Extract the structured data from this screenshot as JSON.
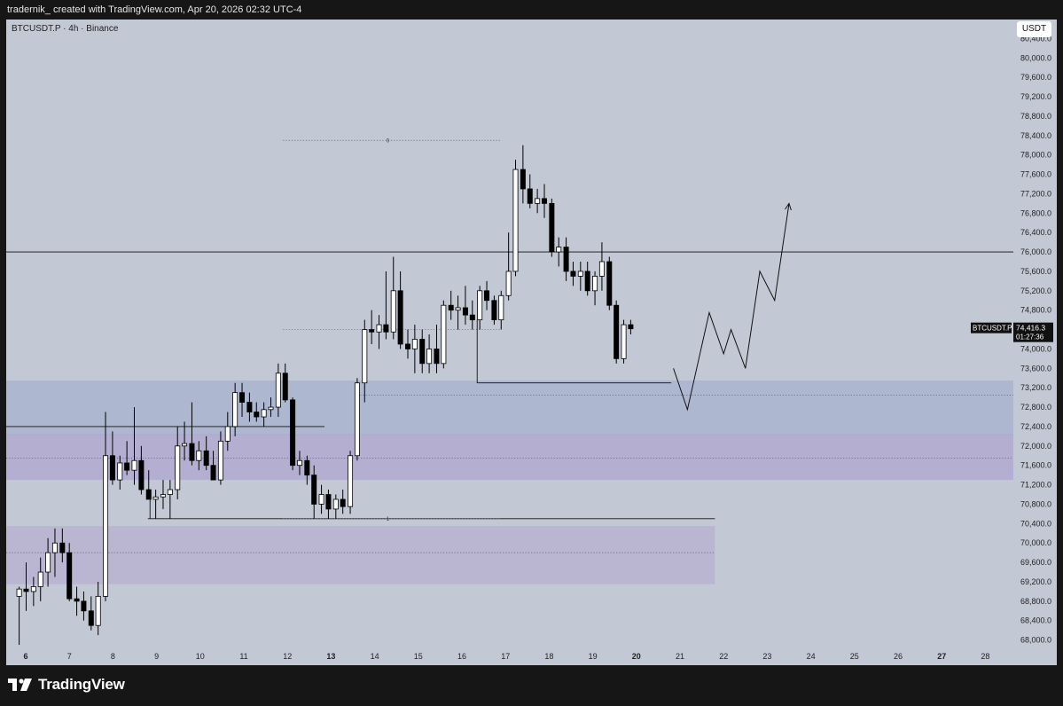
{
  "header": {
    "caption": "tradernik_ created with TradingView.com, Apr 20, 2026 02:32 UTC-4"
  },
  "chart_header": {
    "symbol_title": "BTCUSDT.P · 4h · Binance",
    "currency": "USDT"
  },
  "price_label": {
    "symbol": "BTCUSDT.P",
    "price": "74,416.3",
    "countdown": "01:27:36"
  },
  "fib_labels": {
    "top": "0",
    "bottom": "1"
  },
  "brand": {
    "name": "TradingView"
  },
  "colors": {
    "background": "#c3c8d5",
    "bull_candle": "#ffffff",
    "bear_candle": "#000000",
    "supply_zone": "#aab4cf",
    "demand_zone_upper": "#b2aad0",
    "demand_zone_lower": "#b9b3d0"
  },
  "chart_data": {
    "type": "candlestick",
    "x_ticks": [
      {
        "label": "6",
        "bold": true,
        "day": 6
      },
      {
        "label": "7",
        "bold": false,
        "day": 7
      },
      {
        "label": "8",
        "bold": false,
        "day": 8
      },
      {
        "label": "9",
        "bold": false,
        "day": 9
      },
      {
        "label": "10",
        "bold": false,
        "day": 10
      },
      {
        "label": "11",
        "bold": false,
        "day": 11
      },
      {
        "label": "12",
        "bold": false,
        "day": 12
      },
      {
        "label": "13",
        "bold": true,
        "day": 13
      },
      {
        "label": "14",
        "bold": false,
        "day": 14
      },
      {
        "label": "15",
        "bold": false,
        "day": 15
      },
      {
        "label": "16",
        "bold": false,
        "day": 16
      },
      {
        "label": "17",
        "bold": false,
        "day": 17
      },
      {
        "label": "18",
        "bold": false,
        "day": 18
      },
      {
        "label": "19",
        "bold": false,
        "day": 19
      },
      {
        "label": "20",
        "bold": true,
        "day": 20
      },
      {
        "label": "21",
        "bold": false,
        "day": 21
      },
      {
        "label": "22",
        "bold": false,
        "day": 22
      },
      {
        "label": "23",
        "bold": false,
        "day": 23
      },
      {
        "label": "24",
        "bold": false,
        "day": 24
      },
      {
        "label": "25",
        "bold": false,
        "day": 25
      },
      {
        "label": "26",
        "bold": false,
        "day": 26
      },
      {
        "label": "27",
        "bold": true,
        "day": 27
      },
      {
        "label": "28",
        "bold": false,
        "day": 28
      }
    ],
    "y_ticks": [
      "80,400.0",
      "80,000.0",
      "79,600.0",
      "79,200.0",
      "78,800.0",
      "78,400.0",
      "78,000.0",
      "77,600.0",
      "77,200.0",
      "76,800.0",
      "76,400.0",
      "76,000.0",
      "75,600.0",
      "75,200.0",
      "74,800.0",
      "74,400.0",
      "74,000.0",
      "73,600.0",
      "73,200.0",
      "72,800.0",
      "72,400.0",
      "72,000.0",
      "71,600.0",
      "71,200.0",
      "70,800.0",
      "70,400.0",
      "70,000.0",
      "69,600.0",
      "69,200.0",
      "68,800.0",
      "68,400.0",
      "68,000.0"
    ],
    "ylim": [
      67700,
      80700
    ],
    "candles": [
      {
        "t": 5.85,
        "o": 68900,
        "h": 69100,
        "l": 67900,
        "c": 69050
      },
      {
        "t": 6.01,
        "o": 69050,
        "h": 69600,
        "l": 68600,
        "c": 69000
      },
      {
        "t": 6.18,
        "o": 69000,
        "h": 69300,
        "l": 68700,
        "c": 69100
      },
      {
        "t": 6.34,
        "o": 69100,
        "h": 69700,
        "l": 68800,
        "c": 69400
      },
      {
        "t": 6.51,
        "o": 69400,
        "h": 70100,
        "l": 69100,
        "c": 69800
      },
      {
        "t": 6.67,
        "o": 69800,
        "h": 70300,
        "l": 69300,
        "c": 70000
      },
      {
        "t": 6.84,
        "o": 70000,
        "h": 70300,
        "l": 69600,
        "c": 69800
      },
      {
        "t": 7.0,
        "o": 69800,
        "h": 70000,
        "l": 68800,
        "c": 68850
      },
      {
        "t": 7.17,
        "o": 68850,
        "h": 69100,
        "l": 68500,
        "c": 68800
      },
      {
        "t": 7.33,
        "o": 68800,
        "h": 69000,
        "l": 68400,
        "c": 68600
      },
      {
        "t": 7.5,
        "o": 68600,
        "h": 68900,
        "l": 68200,
        "c": 68300
      },
      {
        "t": 7.66,
        "o": 68300,
        "h": 69200,
        "l": 68100,
        "c": 68900
      },
      {
        "t": 7.83,
        "o": 68900,
        "h": 72700,
        "l": 68800,
        "c": 71800
      },
      {
        "t": 7.99,
        "o": 71800,
        "h": 72300,
        "l": 71200,
        "c": 71300
      },
      {
        "t": 8.16,
        "o": 71300,
        "h": 71800,
        "l": 71100,
        "c": 71650
      },
      {
        "t": 8.32,
        "o": 71650,
        "h": 72100,
        "l": 71400,
        "c": 71500
      },
      {
        "t": 8.49,
        "o": 71500,
        "h": 72800,
        "l": 71200,
        "c": 71700
      },
      {
        "t": 8.65,
        "o": 71700,
        "h": 72000,
        "l": 71000,
        "c": 71100
      },
      {
        "t": 8.82,
        "o": 71100,
        "h": 71500,
        "l": 70900,
        "c": 70900
      },
      {
        "t": 8.98,
        "o": 70900,
        "h": 71100,
        "l": 70500,
        "c": 70950
      },
      {
        "t": 9.15,
        "o": 70950,
        "h": 71300,
        "l": 70700,
        "c": 71000
      },
      {
        "t": 9.31,
        "o": 71000,
        "h": 71300,
        "l": 70500,
        "c": 71100
      },
      {
        "t": 9.48,
        "o": 71100,
        "h": 72400,
        "l": 70900,
        "c": 72000
      },
      {
        "t": 9.64,
        "o": 72000,
        "h": 72500,
        "l": 71700,
        "c": 72050
      },
      {
        "t": 9.81,
        "o": 72050,
        "h": 72900,
        "l": 71600,
        "c": 71700
      },
      {
        "t": 9.97,
        "o": 71700,
        "h": 72100,
        "l": 71500,
        "c": 71900
      },
      {
        "t": 10.14,
        "o": 71900,
        "h": 72200,
        "l": 71500,
        "c": 71600
      },
      {
        "t": 10.3,
        "o": 71600,
        "h": 71900,
        "l": 71300,
        "c": 71300
      },
      {
        "t": 10.47,
        "o": 71300,
        "h": 72300,
        "l": 71200,
        "c": 72100
      },
      {
        "t": 10.63,
        "o": 72100,
        "h": 72700,
        "l": 71900,
        "c": 72400
      },
      {
        "t": 10.8,
        "o": 72400,
        "h": 73300,
        "l": 72200,
        "c": 73100
      },
      {
        "t": 10.96,
        "o": 73100,
        "h": 73300,
        "l": 72600,
        "c": 72900
      },
      {
        "t": 11.13,
        "o": 72900,
        "h": 73100,
        "l": 72500,
        "c": 72700
      },
      {
        "t": 11.29,
        "o": 72700,
        "h": 72900,
        "l": 72500,
        "c": 72600
      },
      {
        "t": 11.46,
        "o": 72600,
        "h": 72900,
        "l": 72400,
        "c": 72750
      },
      {
        "t": 11.62,
        "o": 72750,
        "h": 73000,
        "l": 72600,
        "c": 72800
      },
      {
        "t": 11.79,
        "o": 72800,
        "h": 73700,
        "l": 72600,
        "c": 73500
      },
      {
        "t": 11.95,
        "o": 73500,
        "h": 73700,
        "l": 72900,
        "c": 72950
      },
      {
        "t": 12.12,
        "o": 72950,
        "h": 73000,
        "l": 71500,
        "c": 71600
      },
      {
        "t": 12.28,
        "o": 71600,
        "h": 71900,
        "l": 71400,
        "c": 71700
      },
      {
        "t": 12.45,
        "o": 71700,
        "h": 71800,
        "l": 71200,
        "c": 71400
      },
      {
        "t": 12.61,
        "o": 71400,
        "h": 71600,
        "l": 70500,
        "c": 70800
      },
      {
        "t": 12.78,
        "o": 70800,
        "h": 71200,
        "l": 70600,
        "c": 71000
      },
      {
        "t": 12.94,
        "o": 71000,
        "h": 71100,
        "l": 70500,
        "c": 70700
      },
      {
        "t": 13.11,
        "o": 70700,
        "h": 71000,
        "l": 70500,
        "c": 70900
      },
      {
        "t": 13.27,
        "o": 70900,
        "h": 71100,
        "l": 70600,
        "c": 70750
      },
      {
        "t": 13.44,
        "o": 70750,
        "h": 71900,
        "l": 70600,
        "c": 71800
      },
      {
        "t": 13.6,
        "o": 71800,
        "h": 73400,
        "l": 71700,
        "c": 73300
      },
      {
        "t": 13.77,
        "o": 73300,
        "h": 74600,
        "l": 72900,
        "c": 74400
      },
      {
        "t": 13.93,
        "o": 74400,
        "h": 74800,
        "l": 74100,
        "c": 74350
      },
      {
        "t": 14.1,
        "o": 74350,
        "h": 74700,
        "l": 74000,
        "c": 74500
      },
      {
        "t": 14.26,
        "o": 74500,
        "h": 75600,
        "l": 74200,
        "c": 74350
      },
      {
        "t": 14.43,
        "o": 74350,
        "h": 75900,
        "l": 74200,
        "c": 75200
      },
      {
        "t": 14.59,
        "o": 75200,
        "h": 75600,
        "l": 74000,
        "c": 74100
      },
      {
        "t": 14.76,
        "o": 74100,
        "h": 74400,
        "l": 73800,
        "c": 74000
      },
      {
        "t": 14.92,
        "o": 74000,
        "h": 74500,
        "l": 73500,
        "c": 74200
      },
      {
        "t": 15.09,
        "o": 74200,
        "h": 74400,
        "l": 73500,
        "c": 73700
      },
      {
        "t": 15.25,
        "o": 73700,
        "h": 74300,
        "l": 73500,
        "c": 74000
      },
      {
        "t": 15.42,
        "o": 74000,
        "h": 74500,
        "l": 73500,
        "c": 73700
      },
      {
        "t": 15.58,
        "o": 73700,
        "h": 75000,
        "l": 73600,
        "c": 74900
      },
      {
        "t": 15.75,
        "o": 74900,
        "h": 75200,
        "l": 74600,
        "c": 74800
      },
      {
        "t": 15.91,
        "o": 74800,
        "h": 75100,
        "l": 74400,
        "c": 74850
      },
      {
        "t": 16.08,
        "o": 74850,
        "h": 75300,
        "l": 74500,
        "c": 74700
      },
      {
        "t": 16.24,
        "o": 74700,
        "h": 75000,
        "l": 74400,
        "c": 74600
      },
      {
        "t": 16.41,
        "o": 74600,
        "h": 75300,
        "l": 74400,
        "c": 75200
      },
      {
        "t": 16.57,
        "o": 75200,
        "h": 75400,
        "l": 74800,
        "c": 75000
      },
      {
        "t": 16.74,
        "o": 75000,
        "h": 75100,
        "l": 74500,
        "c": 74600
      },
      {
        "t": 16.9,
        "o": 74600,
        "h": 75200,
        "l": 74400,
        "c": 75100
      },
      {
        "t": 17.07,
        "o": 75100,
        "h": 76400,
        "l": 75000,
        "c": 75600
      },
      {
        "t": 17.23,
        "o": 75600,
        "h": 77900,
        "l": 75500,
        "c": 77700
      },
      {
        "t": 17.4,
        "o": 77700,
        "h": 78200,
        "l": 77000,
        "c": 77300
      },
      {
        "t": 17.56,
        "o": 77300,
        "h": 77600,
        "l": 76900,
        "c": 77000
      },
      {
        "t": 17.73,
        "o": 77000,
        "h": 77300,
        "l": 76800,
        "c": 77100
      },
      {
        "t": 17.89,
        "o": 77100,
        "h": 77400,
        "l": 76700,
        "c": 77000
      },
      {
        "t": 18.06,
        "o": 77000,
        "h": 77100,
        "l": 75900,
        "c": 76000
      },
      {
        "t": 18.22,
        "o": 76000,
        "h": 76300,
        "l": 75700,
        "c": 76100
      },
      {
        "t": 18.39,
        "o": 76100,
        "h": 76300,
        "l": 75400,
        "c": 75600
      },
      {
        "t": 18.55,
        "o": 75600,
        "h": 75800,
        "l": 75300,
        "c": 75500
      },
      {
        "t": 18.72,
        "o": 75500,
        "h": 75800,
        "l": 75200,
        "c": 75600
      },
      {
        "t": 18.88,
        "o": 75600,
        "h": 75800,
        "l": 75100,
        "c": 75200
      },
      {
        "t": 19.05,
        "o": 75200,
        "h": 75600,
        "l": 74900,
        "c": 75500
      },
      {
        "t": 19.21,
        "o": 75500,
        "h": 76200,
        "l": 75200,
        "c": 75800
      },
      {
        "t": 19.38,
        "o": 75800,
        "h": 75900,
        "l": 74800,
        "c": 74900
      },
      {
        "t": 19.54,
        "o": 74900,
        "h": 75000,
        "l": 73700,
        "c": 73800
      },
      {
        "t": 19.71,
        "o": 73800,
        "h": 74600,
        "l": 73700,
        "c": 74500
      },
      {
        "t": 19.87,
        "o": 74500,
        "h": 74600,
        "l": 74300,
        "c": 74416
      }
    ],
    "horizontal_lines": [
      {
        "price": 76000,
        "x1": 5.0,
        "x2": 29.0,
        "style": "solid"
      },
      {
        "price": 72400,
        "x1": 5.0,
        "x2": 12.85,
        "style": "solid"
      },
      {
        "price": 70500,
        "x1": 8.8,
        "x2": 21.8,
        "style": "solid"
      },
      {
        "price": 73300,
        "x1": 16.35,
        "x2": 20.8,
        "style": "solid"
      },
      {
        "price": 78300,
        "x1": 11.9,
        "x2": 16.9,
        "style": "dotted"
      },
      {
        "price": 74400,
        "x1": 11.9,
        "x2": 16.9,
        "style": "dotted"
      },
      {
        "price": 70500,
        "x1": 11.9,
        "x2": 16.9,
        "style": "dotted"
      },
      {
        "price": 73050,
        "x1": 13.6,
        "x2": 29.0,
        "style": "dotted"
      },
      {
        "price": 71750,
        "x1": 5.0,
        "x2": 29.0,
        "style": "dotted"
      },
      {
        "price": 69800,
        "x1": 5.0,
        "x2": 21.8,
        "style": "dotted"
      }
    ],
    "vertical_lines": [
      {
        "x": 8.85,
        "y1": 70500,
        "y2": 71100
      },
      {
        "x": 16.35,
        "y1": 73300,
        "y2": 74600
      }
    ],
    "zones": [
      {
        "name": "supply-zone",
        "x1": 5.0,
        "x2": 29.0,
        "y_top": 73350,
        "y_bottom": 72200,
        "color": "#aab4cf"
      },
      {
        "name": "demand-zone-upper",
        "x1": 5.0,
        "x2": 29.0,
        "y_top": 72250,
        "y_bottom": 71300,
        "color": "#b2aad0"
      },
      {
        "name": "demand-zone-lower",
        "x1": 5.0,
        "x2": 21.8,
        "y_top": 70350,
        "y_bottom": 69150,
        "color": "#b9b3d0"
      }
    ],
    "projection_path": [
      {
        "t": 20.85,
        "p": 73600
      },
      {
        "t": 21.17,
        "p": 72750
      },
      {
        "t": 21.67,
        "p": 74750
      },
      {
        "t": 22.0,
        "p": 73900
      },
      {
        "t": 22.17,
        "p": 74400
      },
      {
        "t": 22.5,
        "p": 73600
      },
      {
        "t": 22.83,
        "p": 75600
      },
      {
        "t": 23.17,
        "p": 75000
      },
      {
        "t": 23.5,
        "p": 77000
      }
    ]
  }
}
